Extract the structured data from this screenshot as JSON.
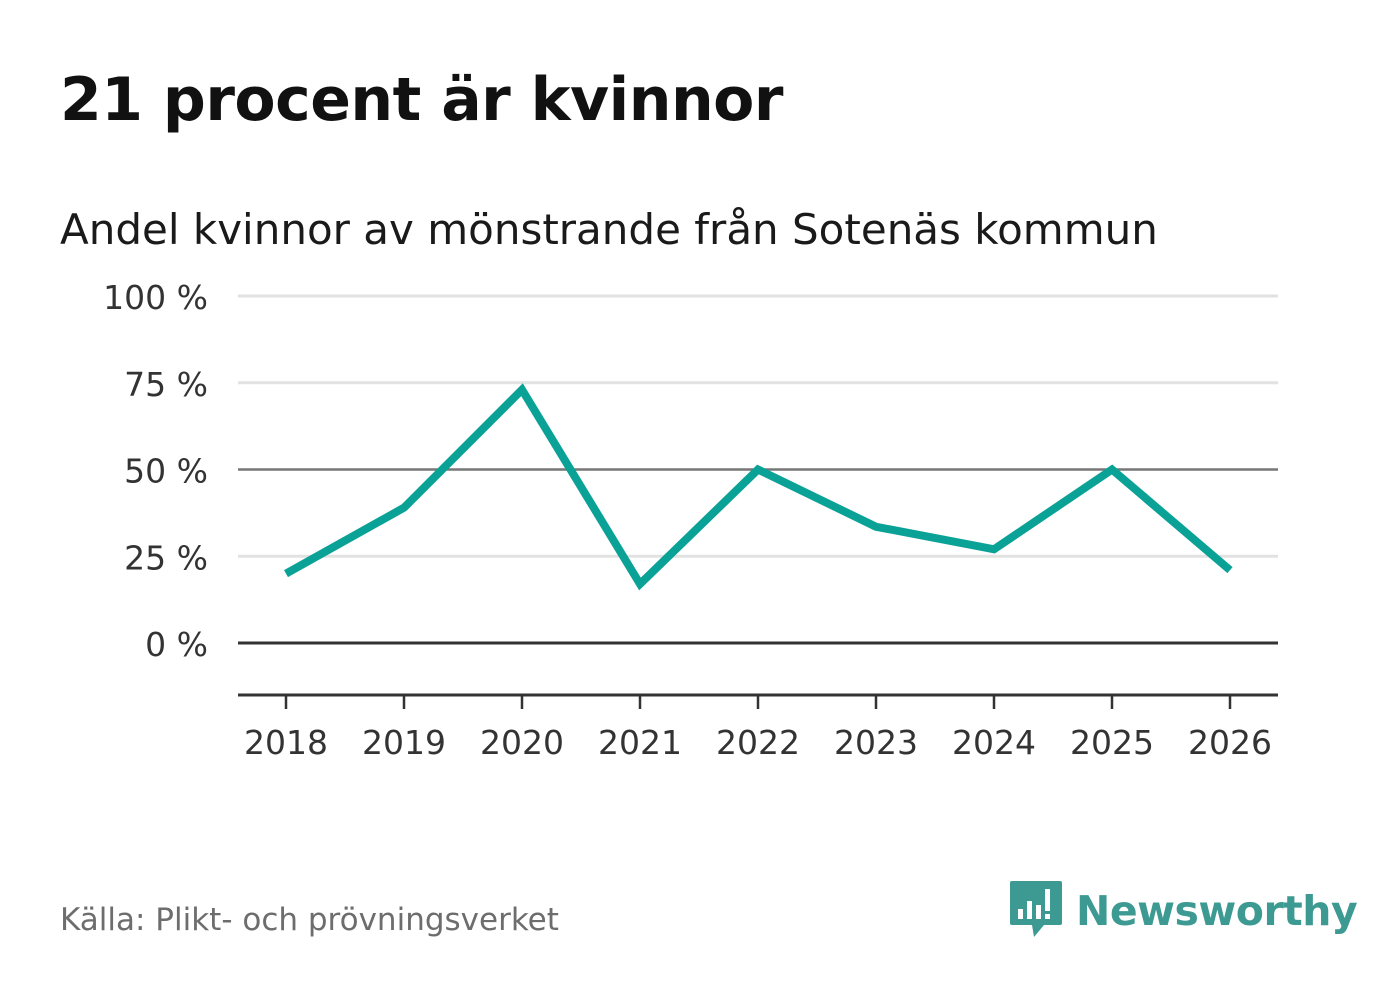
{
  "title": "21 procent är kvinnor",
  "subtitle": "Andel kvinnor av mönstrande från Sotenäs kommun",
  "source": "Källa: Plikt- och prövningsverket",
  "brand": {
    "name": "Newsworthy",
    "icon": "newsworthy-logo-icon",
    "color": "#3d9a92"
  },
  "colors": {
    "line": "#0aa196",
    "grid": "#e2e2e2",
    "reference": "#777777",
    "axis": "#333333",
    "tick_text": "#333333"
  },
  "chart_data": {
    "type": "line",
    "title": "Andel kvinnor av mönstrande från Sotenäs kommun",
    "xlabel": "",
    "ylabel": "",
    "categories": [
      "2018",
      "2019",
      "2020",
      "2021",
      "2022",
      "2023",
      "2024",
      "2025",
      "2026"
    ],
    "series": [
      {
        "name": "Andel kvinnor",
        "values": [
          20,
          39,
          73,
          17,
          50,
          33.5,
          27,
          50,
          21
        ]
      }
    ],
    "ylim": [
      -15,
      100
    ],
    "yticks": [
      100,
      75,
      50,
      25,
      0
    ],
    "ytick_labels": [
      "100 %",
      "75 %",
      "50 %",
      "25 %",
      "0 %"
    ],
    "reference_lines": [
      50,
      0
    ],
    "grid": true,
    "legend": "none"
  }
}
